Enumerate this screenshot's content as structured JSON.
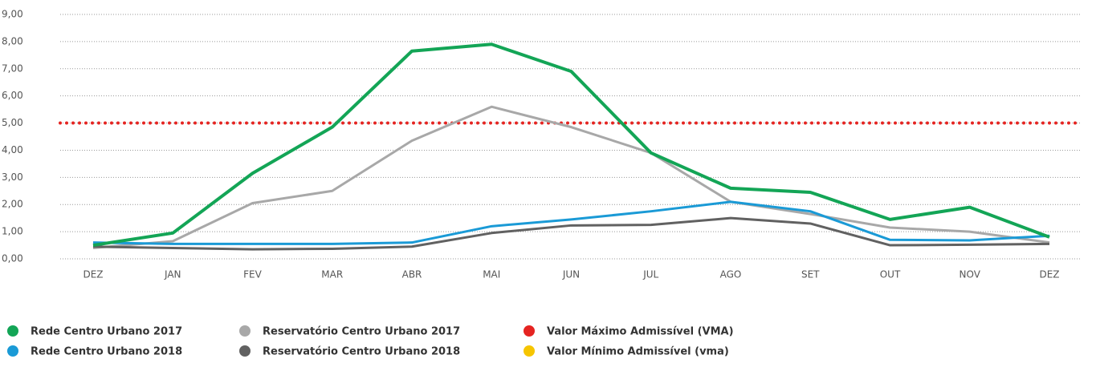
{
  "chart_data": {
    "type": "line",
    "categories": [
      "DEZ",
      "JAN",
      "FEV",
      "MAR",
      "ABR",
      "MAI",
      "JUN",
      "JUL",
      "AGO",
      "SET",
      "OUT",
      "NOV",
      "DEZ"
    ],
    "series": [
      {
        "name": "Rede Centro Urbano 2017",
        "color": "#13a556",
        "values": [
          0.5,
          0.95,
          3.15,
          4.85,
          7.65,
          7.9,
          6.9,
          3.9,
          2.6,
          2.45,
          1.45,
          1.9,
          0.8
        ]
      },
      {
        "name": "Rede Centro Urbano 2018",
        "color": "#1a9ad6",
        "values": [
          0.6,
          0.55,
          0.55,
          0.55,
          0.6,
          1.2,
          1.45,
          1.75,
          2.1,
          1.75,
          0.7,
          0.68,
          0.85
        ]
      },
      {
        "name": "Reservatório Centro Urbano 2017",
        "color": "#a8a8a8",
        "values": [
          0.4,
          0.65,
          2.05,
          2.5,
          4.35,
          5.6,
          4.85,
          3.9,
          2.1,
          1.65,
          1.15,
          1.0,
          0.6
        ]
      },
      {
        "name": "Reservatório Centro Urbano 2018",
        "color": "#616161",
        "values": [
          0.45,
          0.4,
          0.35,
          0.37,
          0.45,
          0.95,
          1.23,
          1.25,
          1.5,
          1.3,
          0.5,
          0.52,
          0.55
        ]
      }
    ],
    "limits": [
      {
        "name": "Valor Máximo Admissível (VMA)",
        "color": "#e52421",
        "value": 5
      },
      {
        "name": "Valor Mínimo Admissível (vma)",
        "color": "#f6c500"
      }
    ],
    "ylim": [
      0,
      9
    ],
    "yticks": [
      {
        "value": 0,
        "label": "0,00"
      },
      {
        "value": 1,
        "label": "1,00"
      },
      {
        "value": 2,
        "label": "2,00"
      },
      {
        "value": 3,
        "label": "3,00"
      },
      {
        "value": 4,
        "label": "4,00"
      },
      {
        "value": 5,
        "label": "5,00"
      },
      {
        "value": 6,
        "label": "6,00"
      },
      {
        "value": 7,
        "label": "7,00"
      },
      {
        "value": 8,
        "label": "8,00"
      },
      {
        "value": 9,
        "label": "9,00"
      }
    ],
    "grid": true
  }
}
